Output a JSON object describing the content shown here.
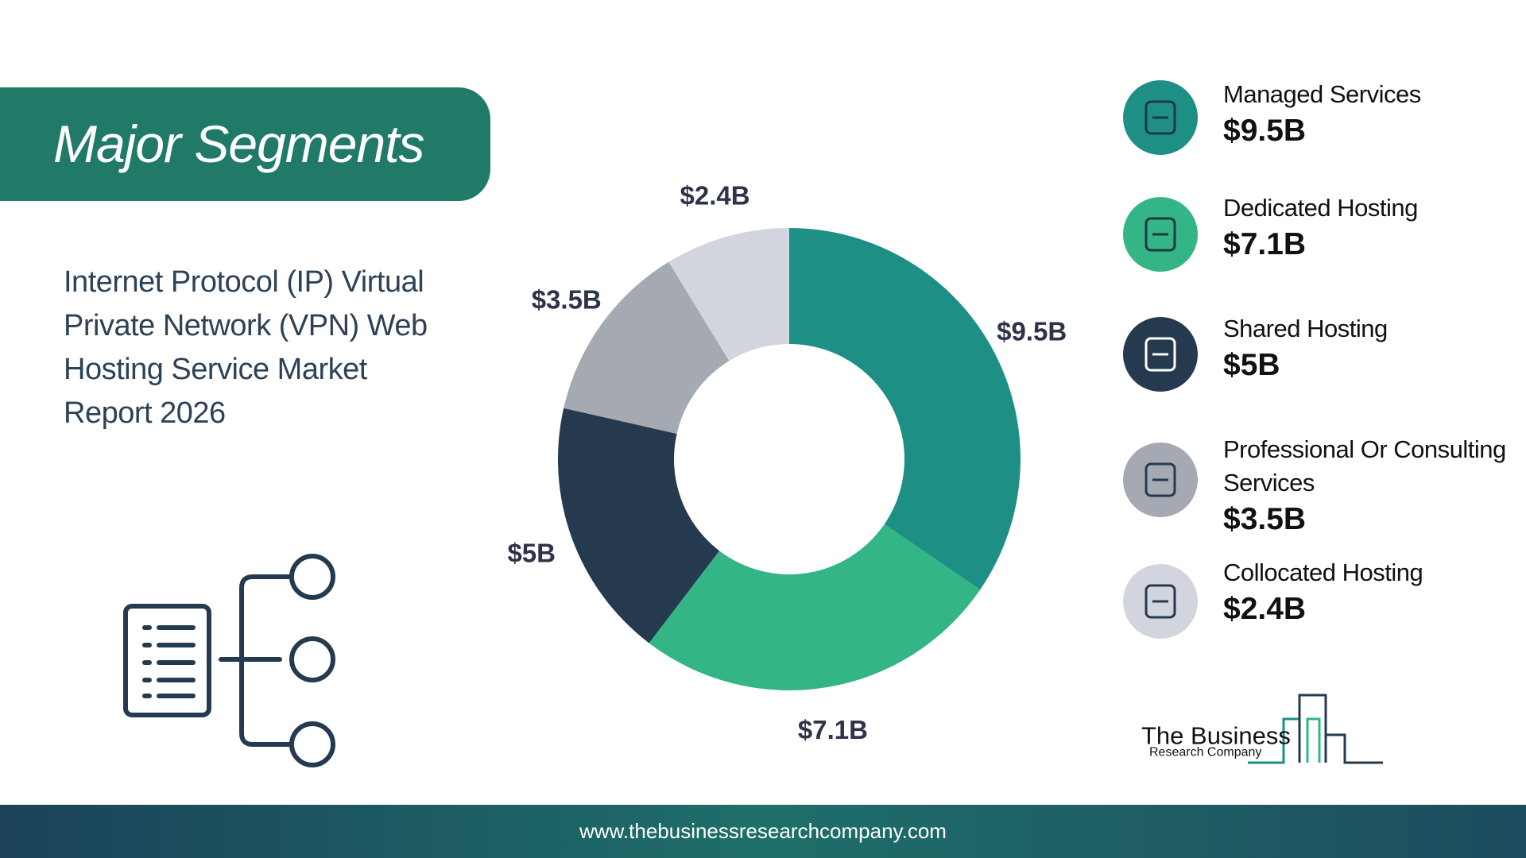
{
  "header": {
    "title": "Major Segments",
    "subtitle": "Internet Protocol (IP) Virtual Private Network (VPN) Web Hosting Service Market Report 2026"
  },
  "chart_data": {
    "type": "donut",
    "categories": [
      "Managed Services",
      "Dedicated Hosting",
      "Shared Hosting",
      "Professional Or Consulting Services",
      "Collocated Hosting"
    ],
    "values": [
      9.5,
      7.1,
      5,
      3.5,
      2.4
    ],
    "value_labels": [
      "$9.5B",
      "$7.1B",
      "$5B",
      "$3.5B",
      "$2.4B"
    ],
    "colors": [
      "#1e8f85",
      "#34b585",
      "#263a4f",
      "#a5a9b2",
      "#d3d5de"
    ]
  },
  "logo": {
    "name": "The Business",
    "tagline": "Research Company"
  },
  "footer": {
    "url": "www.thebusinessresearchcompany.com"
  }
}
